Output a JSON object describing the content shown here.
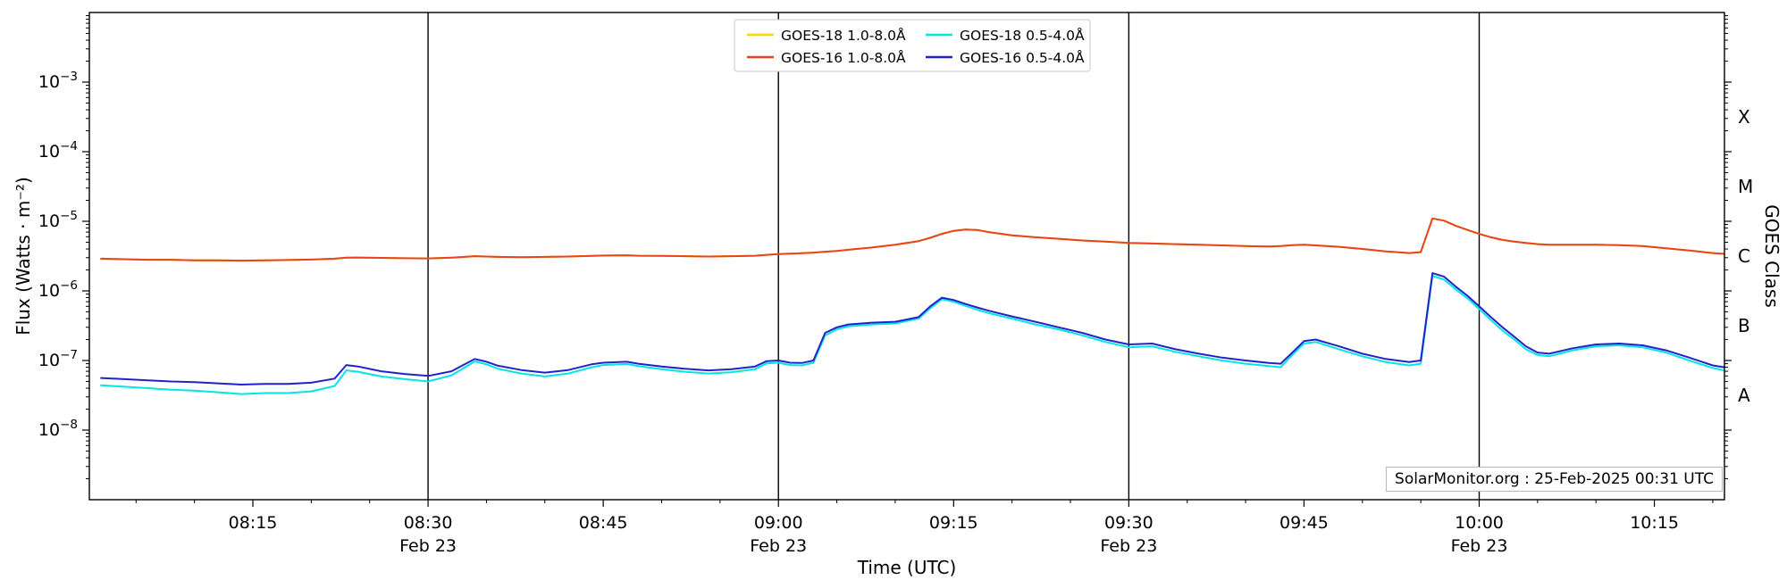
{
  "chart_data": {
    "type": "line",
    "title": "",
    "xlabel": "Time (UTC)",
    "ylabel": "Flux (Watts · m⁻²)",
    "ylabel_right": "GOES Class",
    "annotation": "SolarMonitor.org : 25-Feb-2025 00:31 UTC",
    "y_scale": "log",
    "y_range": [
      1e-09,
      0.01
    ],
    "grid": "off",
    "legend_position": "top-center",
    "x_unit": "minutes after 08:00 UTC, 23-Feb-2025",
    "x_range_minutes": [
      1,
      141
    ],
    "x_ticks": [
      {
        "minute": 15,
        "label": "08:15"
      },
      {
        "minute": 30,
        "label": "08:30",
        "date": "Feb 23"
      },
      {
        "minute": 45,
        "label": "08:45"
      },
      {
        "minute": 60,
        "label": "09:00",
        "date": "Feb 23"
      },
      {
        "minute": 75,
        "label": "09:15"
      },
      {
        "minute": 90,
        "label": "09:30",
        "date": "Feb 23"
      },
      {
        "minute": 105,
        "label": "09:45"
      },
      {
        "minute": 120,
        "label": "10:00",
        "date": "Feb 23"
      },
      {
        "minute": 135,
        "label": "10:15"
      }
    ],
    "vlines_minutes": [
      30,
      60,
      90,
      120
    ],
    "y_ticks": [
      {
        "value": 0.001,
        "label": "10⁻³",
        "exp": "−3"
      },
      {
        "value": 0.0001,
        "label": "10⁻⁴",
        "exp": "−4"
      },
      {
        "value": 1e-05,
        "label": "10⁻⁵",
        "exp": "−5"
      },
      {
        "value": 1e-06,
        "label": "10⁻⁶",
        "exp": "−6"
      },
      {
        "value": 1e-07,
        "label": "10⁻⁷",
        "exp": "−7"
      },
      {
        "value": 1e-08,
        "label": "10⁻⁸",
        "exp": "−8"
      }
    ],
    "goes_classes": [
      {
        "label": "X",
        "value": 0.0003162
      },
      {
        "label": "M",
        "value": 3.162e-05
      },
      {
        "label": "C",
        "value": 3.162e-06
      },
      {
        "label": "B",
        "value": 3.162e-07
      },
      {
        "label": "A",
        "value": 3.162e-08
      }
    ],
    "x_minutes": [
      2,
      4,
      6,
      8,
      10,
      12,
      14,
      16,
      18,
      20,
      22,
      23,
      24,
      26,
      28,
      30,
      32,
      34,
      35,
      36,
      38,
      40,
      42,
      44,
      45,
      47,
      48,
      50,
      52,
      54,
      56,
      58,
      59,
      60,
      61,
      62,
      63,
      64,
      65,
      66,
      68,
      70,
      72,
      73,
      74,
      75,
      76,
      77,
      78,
      80,
      82,
      84,
      86,
      88,
      90,
      92,
      94,
      96,
      98,
      100,
      102,
      103,
      104,
      105,
      106,
      108,
      110,
      112,
      113,
      114,
      115,
      116,
      117,
      118,
      119,
      120,
      121,
      122,
      123,
      124,
      125,
      126,
      128,
      130,
      132,
      134,
      136,
      138,
      140,
      141
    ],
    "series": [
      {
        "name": "GOES-18 1.0-8.0Å",
        "color": "#ffd400",
        "values": [
          2.9e-06,
          2.85e-06,
          2.8e-06,
          2.8e-06,
          2.75e-06,
          2.75e-06,
          2.72e-06,
          2.75e-06,
          2.78e-06,
          2.82e-06,
          2.9e-06,
          3e-06,
          3.02e-06,
          2.98e-06,
          2.95e-06,
          2.93e-06,
          3e-06,
          3.15e-06,
          3.12e-06,
          3.08e-06,
          3.05e-06,
          3.08e-06,
          3.12e-06,
          3.18e-06,
          3.22e-06,
          3.25e-06,
          3.2e-06,
          3.18e-06,
          3.15e-06,
          3.12e-06,
          3.15e-06,
          3.2e-06,
          3.3e-06,
          3.38e-06,
          3.42e-06,
          3.48e-06,
          3.55e-06,
          3.65e-06,
          3.75e-06,
          3.9e-06,
          4.2e-06,
          4.6e-06,
          5.2e-06,
          5.8e-06,
          6.6e-06,
          7.3e-06,
          7.6e-06,
          7.5e-06,
          7e-06,
          6.3e-06,
          5.9e-06,
          5.6e-06,
          5.3e-06,
          5.1e-06,
          4.9e-06,
          4.8e-06,
          4.7e-06,
          4.6e-06,
          4.5e-06,
          4.4e-06,
          4.35e-06,
          4.4e-06,
          4.55e-06,
          4.6e-06,
          4.5e-06,
          4.3e-06,
          4e-06,
          3.7e-06,
          3.6e-06,
          3.5e-06,
          3.6e-06,
          1.1e-05,
          1.02e-05,
          8.6e-06,
          7.5e-06,
          6.6e-06,
          5.9e-06,
          5.4e-06,
          5.1e-06,
          4.9e-06,
          4.7e-06,
          4.6e-06,
          4.6e-06,
          4.6e-06,
          4.55e-06,
          4.4e-06,
          4.1e-06,
          3.8e-06,
          3.5e-06,
          3.4e-06
        ]
      },
      {
        "name": "GOES-16 1.0-8.0Å",
        "color": "#e8431d",
        "values": [
          2.9e-06,
          2.85e-06,
          2.8e-06,
          2.8e-06,
          2.75e-06,
          2.75e-06,
          2.72e-06,
          2.75e-06,
          2.78e-06,
          2.82e-06,
          2.9e-06,
          3e-06,
          3.02e-06,
          2.98e-06,
          2.95e-06,
          2.93e-06,
          3e-06,
          3.15e-06,
          3.12e-06,
          3.08e-06,
          3.05e-06,
          3.08e-06,
          3.12e-06,
          3.18e-06,
          3.22e-06,
          3.25e-06,
          3.2e-06,
          3.18e-06,
          3.15e-06,
          3.12e-06,
          3.15e-06,
          3.2e-06,
          3.3e-06,
          3.38e-06,
          3.42e-06,
          3.48e-06,
          3.55e-06,
          3.65e-06,
          3.75e-06,
          3.9e-06,
          4.2e-06,
          4.6e-06,
          5.2e-06,
          5.8e-06,
          6.6e-06,
          7.3e-06,
          7.6e-06,
          7.5e-06,
          7e-06,
          6.3e-06,
          5.9e-06,
          5.6e-06,
          5.3e-06,
          5.1e-06,
          4.9e-06,
          4.8e-06,
          4.7e-06,
          4.6e-06,
          4.5e-06,
          4.4e-06,
          4.35e-06,
          4.4e-06,
          4.55e-06,
          4.6e-06,
          4.5e-06,
          4.3e-06,
          4e-06,
          3.7e-06,
          3.6e-06,
          3.5e-06,
          3.6e-06,
          1.1e-05,
          1.02e-05,
          8.6e-06,
          7.5e-06,
          6.6e-06,
          5.9e-06,
          5.4e-06,
          5.1e-06,
          4.9e-06,
          4.7e-06,
          4.6e-06,
          4.6e-06,
          4.6e-06,
          4.55e-06,
          4.4e-06,
          4.1e-06,
          3.8e-06,
          3.5e-06,
          3.4e-06
        ]
      },
      {
        "name": "GOES-18 0.5-4.0Å",
        "color": "#00e5e5",
        "values": [
          4.4e-08,
          4.2e-08,
          4e-08,
          3.8e-08,
          3.7e-08,
          3.5e-08,
          3.3e-08,
          3.4e-08,
          3.4e-08,
          3.6e-08,
          4.3e-08,
          7.2e-08,
          6.9e-08,
          5.9e-08,
          5.4e-08,
          5e-08,
          6.1e-08,
          9.7e-08,
          8.8e-08,
          7.6e-08,
          6.5e-08,
          5.9e-08,
          6.5e-08,
          8e-08,
          8.6e-08,
          8.9e-08,
          8.3e-08,
          7.5e-08,
          6.9e-08,
          6.5e-08,
          6.8e-08,
          7.5e-08,
          9.1e-08,
          9.3e-08,
          8.6e-08,
          8.5e-08,
          9.3e-08,
          2.3e-07,
          2.8e-07,
          3.1e-07,
          3.3e-07,
          3.4e-07,
          4e-07,
          5.6e-07,
          7.6e-07,
          7e-07,
          6.1e-07,
          5.4e-07,
          4.8e-07,
          4e-07,
          3.3e-07,
          2.8e-07,
          2.3e-07,
          1.85e-07,
          1.55e-07,
          1.6e-07,
          1.33e-07,
          1.15e-07,
          1e-07,
          9e-08,
          8.3e-08,
          8e-08,
          1.2e-07,
          1.75e-07,
          1.85e-07,
          1.45e-07,
          1.15e-07,
          9.5e-08,
          9e-08,
          8.5e-08,
          9e-08,
          1.65e-06,
          1.45e-06,
          1.05e-06,
          7.8e-07,
          5.5e-07,
          3.8e-07,
          2.7e-07,
          2e-07,
          1.45e-07,
          1.2e-07,
          1.15e-07,
          1.4e-07,
          1.6e-07,
          1.65e-07,
          1.55e-07,
          1.3e-07,
          1e-07,
          7.8e-08,
          7.2e-08
        ]
      },
      {
        "name": "GOES-16 0.5-4.0Å",
        "color": "#2222cc",
        "values": [
          5.6e-08,
          5.4e-08,
          5.2e-08,
          5e-08,
          4.9e-08,
          4.7e-08,
          4.5e-08,
          4.6e-08,
          4.6e-08,
          4.8e-08,
          5.5e-08,
          8.6e-08,
          8.2e-08,
          7e-08,
          6.4e-08,
          6e-08,
          7e-08,
          1.05e-07,
          9.6e-08,
          8.4e-08,
          7.3e-08,
          6.7e-08,
          7.3e-08,
          8.8e-08,
          9.3e-08,
          9.6e-08,
          9e-08,
          8.2e-08,
          7.6e-08,
          7.2e-08,
          7.5e-08,
          8.2e-08,
          9.8e-08,
          1e-07,
          9.3e-08,
          9.2e-08,
          1e-07,
          2.5e-07,
          3e-07,
          3.3e-07,
          3.5e-07,
          3.6e-07,
          4.2e-07,
          6e-07,
          8e-07,
          7.4e-07,
          6.5e-07,
          5.8e-07,
          5.2e-07,
          4.3e-07,
          3.6e-07,
          3e-07,
          2.5e-07,
          2e-07,
          1.7e-07,
          1.75e-07,
          1.45e-07,
          1.25e-07,
          1.1e-07,
          1e-07,
          9.2e-08,
          9e-08,
          1.3e-07,
          1.9e-07,
          2e-07,
          1.6e-07,
          1.25e-07,
          1.05e-07,
          1e-07,
          9.5e-08,
          1e-07,
          1.8e-06,
          1.6e-06,
          1.15e-06,
          8.5e-07,
          6e-07,
          4.2e-07,
          3e-07,
          2.2e-07,
          1.6e-07,
          1.3e-07,
          1.25e-07,
          1.5e-07,
          1.7e-07,
          1.75e-07,
          1.65e-07,
          1.4e-07,
          1.1e-07,
          8.5e-08,
          8e-08
        ]
      }
    ]
  }
}
